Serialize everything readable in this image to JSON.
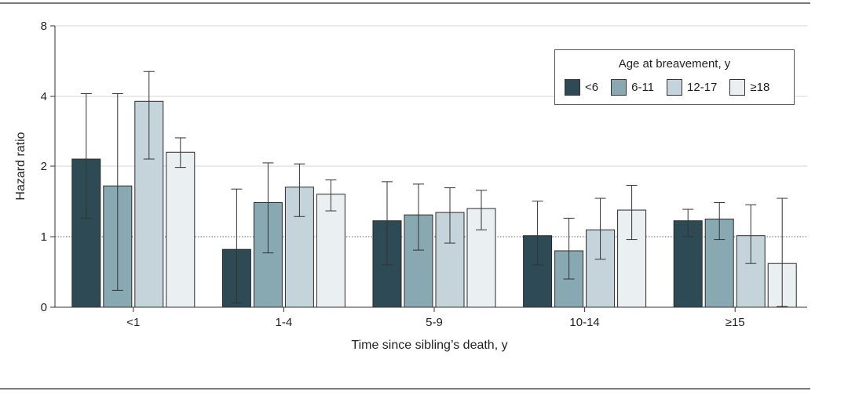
{
  "chart_data": {
    "type": "bar",
    "ylabel": "Hazard ratio",
    "xlabel": "Time since sibling’s death, y",
    "y_scale": "log",
    "ylim": [
      0,
      8
    ],
    "y_ticks": [
      0,
      1,
      2,
      4,
      8
    ],
    "reference_line": 1,
    "categories": [
      "<1",
      "1-4",
      "5-9",
      "10-14",
      "≥15"
    ],
    "legend": {
      "title": "Age at breavement, y",
      "placement": "top-right"
    },
    "colors": [
      "#2d4a55",
      "#88a8b2",
      "#c4d4da",
      "#eaeff2"
    ],
    "series": [
      {
        "name": "<6",
        "values": [
          2.15,
          0.82,
          1.17,
          1.01,
          1.17
        ],
        "ci_low": [
          1.2,
          0.06,
          0.6,
          0.6,
          1.0
        ],
        "ci_high": [
          4.1,
          1.6,
          1.72,
          1.42,
          1.31
        ]
      },
      {
        "name": "6-11",
        "values": [
          1.65,
          1.4,
          1.24,
          0.8,
          1.19
        ],
        "ci_low": [
          0.24,
          0.77,
          0.81,
          0.4,
          0.96
        ],
        "ci_high": [
          4.1,
          2.07,
          1.68,
          1.2,
          1.4
        ]
      },
      {
        "name": "12-17",
        "values": [
          3.8,
          1.63,
          1.27,
          1.07,
          1.01
        ],
        "ci_low": [
          2.15,
          1.22,
          0.91,
          0.68,
          0.62
        ],
        "ci_high": [
          5.1,
          2.05,
          1.62,
          1.46,
          1.37
        ]
      },
      {
        "name": "≥18",
        "values": [
          2.3,
          1.52,
          1.32,
          1.3,
          0.62
        ],
        "ci_low": [
          1.98,
          1.29,
          1.07,
          0.96,
          0.01
        ],
        "ci_high": [
          2.65,
          1.75,
          1.58,
          1.66,
          1.46
        ]
      }
    ]
  }
}
